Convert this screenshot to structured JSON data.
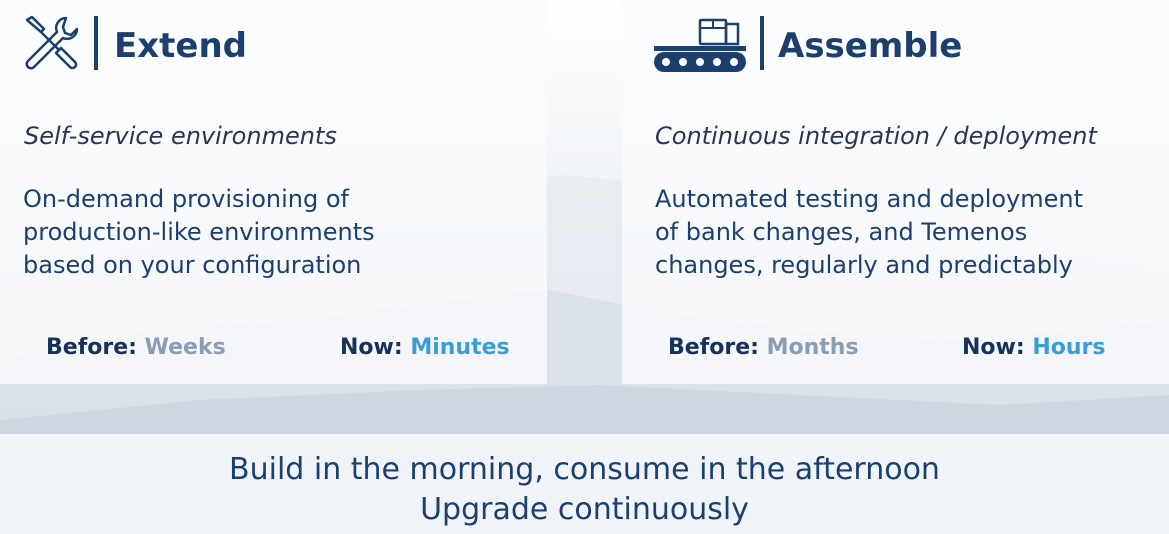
{
  "extend": {
    "title": "Extend",
    "icon": "tools-icon",
    "subtitle": "Self-service environments",
    "description": "On-demand provisioning of\nproduction-like environments\nbased on your configuration",
    "before_label": "Before:",
    "before_value": "Weeks",
    "now_label": "Now:",
    "now_value": "Minutes"
  },
  "assemble": {
    "title": "Assemble",
    "icon": "conveyor-belt-icon",
    "subtitle": "Continuous integration / deployment",
    "description": "Automated testing and deployment\nof bank changes, and Temenos\nchanges, regularly and predictably",
    "before_label": "Before:",
    "before_value": "Months",
    "now_label": "Now:",
    "now_value": "Hours"
  },
  "footer": {
    "line1": "Build in the morning, consume in the afternoon",
    "line2": "Upgrade continuously"
  },
  "colors": {
    "navy": "#1c3f6e",
    "muted": "#8a9db3",
    "accent": "#3a9ed6"
  }
}
